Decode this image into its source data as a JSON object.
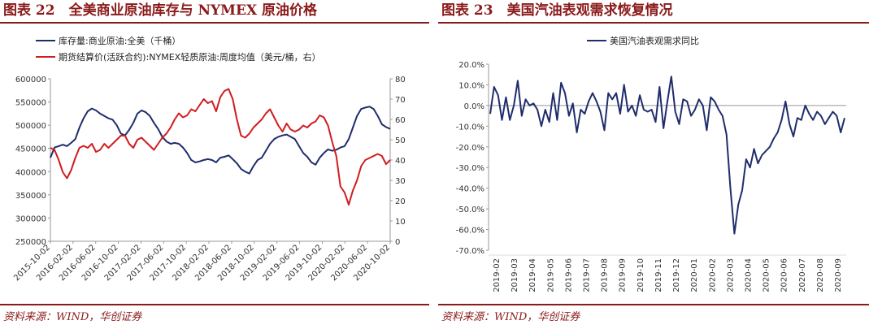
{
  "colors": {
    "title": "#8b1a1a",
    "navy": "#1f2d6b",
    "red": "#d01c1f",
    "axis": "#999999"
  },
  "left": {
    "fig_title": "图表 22　全美商业原油库存与 NYMEX 原油价格",
    "source": "资料来源：WIND，华创证券"
  },
  "right": {
    "fig_title": "图表 23　美国汽油表观需求恢复情况",
    "source": "资料来源：WIND，华创证券"
  },
  "chart_data": [
    {
      "type": "line",
      "title": "全美商业原油库存与 NYMEX 原油价格",
      "legend_position": "top-left",
      "y_left": {
        "lim": [
          250000,
          600000
        ],
        "ticks": [
          250000,
          300000,
          350000,
          400000,
          450000,
          500000,
          550000,
          600000
        ]
      },
      "y_right": {
        "lim": [
          0,
          80
        ],
        "ticks": [
          0,
          10,
          20,
          30,
          40,
          50,
          60,
          70,
          80
        ]
      },
      "x_labels": [
        "2015-10-02",
        "2016-02-02",
        "2016-06-02",
        "2016-10-02",
        "2017-02-02",
        "2017-06-02",
        "2017-10-02",
        "2018-02-02",
        "2018-06-02",
        "2018-10-02",
        "2019-02-02",
        "2019-06-02",
        "2019-10-02",
        "2020-02-02",
        "2020-06-02",
        "2020-10-02"
      ],
      "series": [
        {
          "name": "库存量:商业原油:全美（千桶）",
          "axis": "left",
          "values": [
            430000,
            452000,
            455000,
            458000,
            455000,
            462000,
            470000,
            495000,
            515000,
            530000,
            536000,
            532000,
            525000,
            520000,
            515000,
            512000,
            500000,
            482000,
            478000,
            490000,
            505000,
            525000,
            532000,
            528000,
            520000,
            505000,
            492000,
            475000,
            465000,
            460000,
            462000,
            460000,
            452000,
            440000,
            425000,
            420000,
            422000,
            425000,
            427000,
            425000,
            420000,
            430000,
            432000,
            435000,
            427000,
            418000,
            406000,
            400000,
            396000,
            412000,
            425000,
            430000,
            445000,
            460000,
            470000,
            475000,
            478000,
            480000,
            475000,
            470000,
            455000,
            440000,
            432000,
            420000,
            415000,
            430000,
            440000,
            448000,
            445000,
            447000,
            452000,
            455000,
            470000,
            495000,
            520000,
            535000,
            538000,
            540000,
            535000,
            520000,
            502000,
            496000,
            492000
          ]
        },
        {
          "name": "期货结算价(活跃合约):NYMEX轻质原油:周度均值（美元/桶，右）",
          "axis": "right",
          "values": [
            46,
            45,
            40,
            34,
            31,
            35,
            41,
            46,
            47,
            46,
            48,
            44,
            45,
            48,
            46,
            48,
            50,
            52,
            52,
            48,
            46,
            50,
            51,
            49,
            47,
            45,
            48,
            51,
            53,
            56,
            60,
            63,
            61,
            62,
            65,
            64,
            67,
            70,
            68,
            69,
            64,
            71,
            74,
            75,
            70,
            60,
            52,
            51,
            53,
            56,
            58,
            60,
            63,
            65,
            61,
            57,
            54,
            58,
            55,
            54,
            55,
            57,
            56,
            58,
            59,
            62,
            61,
            57,
            49,
            42,
            27,
            24,
            18,
            25,
            30,
            37,
            40,
            41,
            42,
            43,
            42,
            38,
            40
          ]
        }
      ]
    },
    {
      "type": "line",
      "title": "美国汽油表观需求恢复情况",
      "legend_position": "top-center",
      "ylim": [
        -0.7,
        0.2
      ],
      "y_ticks": [
        "20.0%",
        "10.0%",
        "0.0%",
        "-10.0%",
        "-20.0%",
        "-30.0%",
        "-40.0%",
        "-50.0%",
        "-60.0%",
        "-70.0%"
      ],
      "x_labels": [
        "2019-02",
        "2019-03",
        "2019-04",
        "2019-05",
        "2019-06",
        "2019-07",
        "2019-08",
        "2019-09",
        "2019-10",
        "2019-11",
        "2019-12",
        "2020-01",
        "2020-02",
        "2020-03",
        "2020-04",
        "2020-05",
        "2020-06",
        "2020-07",
        "2020-08",
        "2020-09"
      ],
      "series": [
        {
          "name": "美国汽油表观需求同比",
          "values": [
            -0.04,
            0.09,
            0.05,
            -0.07,
            0.04,
            -0.07,
            0.0,
            0.12,
            -0.05,
            0.03,
            0.0,
            0.01,
            -0.02,
            -0.1,
            -0.02,
            -0.08,
            0.06,
            -0.07,
            0.11,
            0.06,
            -0.05,
            0.01,
            -0.13,
            -0.02,
            -0.04,
            0.02,
            0.06,
            0.02,
            -0.03,
            -0.12,
            0.06,
            0.03,
            0.06,
            -0.04,
            0.1,
            -0.03,
            0.0,
            -0.05,
            0.05,
            -0.02,
            -0.03,
            -0.02,
            -0.08,
            0.09,
            -0.11,
            0.02,
            0.14,
            -0.03,
            -0.09,
            0.03,
            0.02,
            -0.05,
            -0.02,
            0.03,
            0.0,
            -0.12,
            0.04,
            0.02,
            -0.02,
            -0.05,
            -0.14,
            -0.4,
            -0.62,
            -0.48,
            -0.41,
            -0.26,
            -0.3,
            -0.21,
            -0.28,
            -0.24,
            -0.22,
            -0.2,
            -0.16,
            -0.13,
            -0.07,
            0.02,
            -0.09,
            -0.15,
            -0.06,
            -0.07,
            0.0,
            -0.04,
            -0.07,
            -0.03,
            -0.05,
            -0.09,
            -0.06,
            -0.03,
            -0.05,
            -0.13,
            -0.06
          ]
        }
      ]
    }
  ]
}
